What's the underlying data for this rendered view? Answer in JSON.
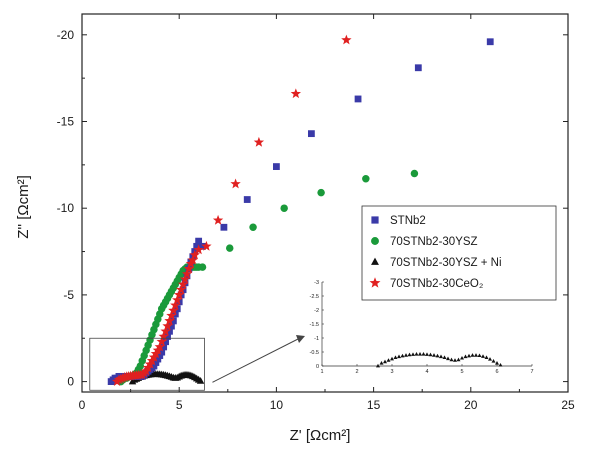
{
  "chart_data": {
    "type": "scatter",
    "xlabel": "Z' [Ωcm²]",
    "ylabel": "Z'' [Ωcm²]",
    "x_axis": {
      "min": 0,
      "max": 25,
      "ticks": [
        0,
        5,
        10,
        15,
        20,
        25
      ]
    },
    "y_axis": {
      "min": 0.6,
      "max": -21.2,
      "inverted": true,
      "ticks": [
        0,
        -5,
        -10,
        -15,
        -20
      ]
    },
    "grid": false,
    "legend_position": "right",
    "legend": [
      {
        "label": "STNb2",
        "marker": "square",
        "color": "#3a3aa8"
      },
      {
        "label": "70STNb2-30YSZ",
        "marker": "circle",
        "color": "#1a9a3a"
      },
      {
        "label": "70STNb2-30YSZ + Ni",
        "marker": "triangle",
        "color": "#111111"
      },
      {
        "label": "70STNb2-30CeO₂",
        "marker": "star",
        "color": "#e02020"
      }
    ],
    "series": [
      {
        "name": "STNb2",
        "marker": "square",
        "color": "#3a3aa8",
        "x": [
          1.5,
          1.6,
          1.7,
          1.8,
          1.9,
          2.0,
          2.1,
          2.2,
          2.3,
          2.4,
          2.5,
          2.6,
          2.7,
          2.8,
          2.9,
          3.0,
          3.1,
          3.2,
          3.3,
          3.4,
          3.5,
          3.6,
          3.7,
          3.8,
          3.9,
          4.0,
          4.1,
          4.2,
          4.3,
          4.4,
          4.5,
          4.6,
          4.7,
          4.8,
          4.9,
          5.0,
          5.1,
          5.2,
          5.3,
          5.4,
          5.5,
          5.6,
          5.7,
          5.8,
          5.9,
          6.0,
          6.2,
          7.3,
          8.5,
          10.0,
          11.8,
          14.2,
          17.3,
          21.0
        ],
        "y": [
          0.0,
          -0.1,
          -0.2,
          -0.2,
          -0.3,
          -0.3,
          -0.3,
          -0.3,
          -0.3,
          -0.3,
          -0.3,
          -0.3,
          -0.3,
          -0.3,
          -0.3,
          -0.3,
          -0.3,
          -0.4,
          -0.5,
          -0.6,
          -0.7,
          -0.8,
          -0.9,
          -1.1,
          -1.3,
          -1.5,
          -1.7,
          -2.0,
          -2.3,
          -2.6,
          -2.9,
          -3.2,
          -3.5,
          -3.9,
          -4.2,
          -4.6,
          -5.0,
          -5.3,
          -5.7,
          -6.1,
          -6.5,
          -6.9,
          -7.2,
          -7.5,
          -7.8,
          -8.1,
          -7.8,
          -8.9,
          -10.5,
          -12.4,
          -14.3,
          -16.3,
          -18.1,
          -19.6
        ]
      },
      {
        "name": "70STNb2-30YSZ",
        "marker": "circle",
        "color": "#1a9a3a",
        "x": [
          2.0,
          2.1,
          2.2,
          2.3,
          2.4,
          2.5,
          2.6,
          2.7,
          2.8,
          2.9,
          3.0,
          3.1,
          3.2,
          3.3,
          3.4,
          3.5,
          3.6,
          3.7,
          3.8,
          3.9,
          4.0,
          4.1,
          4.2,
          4.3,
          4.4,
          4.5,
          4.6,
          4.7,
          4.8,
          4.9,
          5.0,
          5.1,
          5.2,
          5.3,
          5.4,
          5.5,
          5.6,
          5.7,
          5.8,
          5.9,
          6.0,
          6.2,
          7.6,
          8.8,
          10.4,
          12.3,
          14.6,
          17.1
        ],
        "y": [
          0.0,
          -0.1,
          -0.2,
          -0.2,
          -0.3,
          -0.3,
          -0.3,
          -0.4,
          -0.5,
          -0.7,
          -0.9,
          -1.2,
          -1.5,
          -1.8,
          -2.1,
          -2.4,
          -2.7,
          -3.0,
          -3.3,
          -3.6,
          -3.9,
          -4.2,
          -4.4,
          -4.6,
          -4.8,
          -5.0,
          -5.2,
          -5.4,
          -5.6,
          -5.8,
          -6.0,
          -6.2,
          -6.4,
          -6.5,
          -6.6,
          -6.6,
          -6.6,
          -6.6,
          -6.6,
          -6.6,
          -6.6,
          -6.6,
          -7.7,
          -8.9,
          -10.0,
          -10.9,
          -11.7,
          -12.0
        ]
      },
      {
        "name": "70STNb2-30YSZ + Ni",
        "marker": "triangle",
        "color": "#111111",
        "x": [
          2.6,
          2.7,
          2.8,
          2.9,
          3.0,
          3.1,
          3.2,
          3.3,
          3.4,
          3.5,
          3.6,
          3.7,
          3.8,
          3.9,
          4.0,
          4.1,
          4.2,
          4.3,
          4.4,
          4.5,
          4.6,
          4.7,
          4.8,
          4.9,
          5.0,
          5.1,
          5.2,
          5.3,
          5.4,
          5.5,
          5.6,
          5.7,
          5.8,
          5.9,
          6.0,
          6.1
        ],
        "y": [
          0.0,
          -0.1,
          -0.15,
          -0.2,
          -0.25,
          -0.3,
          -0.33,
          -0.36,
          -0.38,
          -0.4,
          -0.41,
          -0.42,
          -0.42,
          -0.42,
          -0.41,
          -0.4,
          -0.38,
          -0.36,
          -0.33,
          -0.3,
          -0.26,
          -0.22,
          -0.2,
          -0.22,
          -0.28,
          -0.33,
          -0.36,
          -0.38,
          -0.38,
          -0.37,
          -0.34,
          -0.3,
          -0.24,
          -0.17,
          -0.1,
          -0.03
        ]
      },
      {
        "name": "70STNb2-30CeO₂",
        "marker": "star",
        "color": "#e02020",
        "x": [
          1.8,
          1.9,
          2.0,
          2.1,
          2.2,
          2.3,
          2.4,
          2.5,
          2.6,
          2.7,
          2.8,
          2.9,
          3.0,
          3.1,
          3.2,
          3.3,
          3.4,
          3.5,
          3.6,
          3.7,
          3.8,
          3.9,
          4.0,
          4.1,
          4.2,
          4.3,
          4.4,
          4.5,
          4.6,
          4.7,
          4.8,
          4.9,
          5.0,
          5.1,
          5.2,
          5.3,
          5.4,
          5.5,
          5.6,
          5.7,
          5.8,
          6.0,
          6.4,
          7.0,
          7.9,
          9.1,
          11.0,
          13.6
        ],
        "y": [
          0.0,
          -0.1,
          -0.15,
          -0.2,
          -0.25,
          -0.28,
          -0.3,
          -0.32,
          -0.34,
          -0.35,
          -0.36,
          -0.37,
          -0.38,
          -0.4,
          -0.5,
          -0.6,
          -0.8,
          -1.0,
          -1.2,
          -1.4,
          -1.6,
          -1.8,
          -2.0,
          -2.3,
          -2.6,
          -2.9,
          -3.2,
          -3.5,
          -3.8,
          -4.1,
          -4.4,
          -4.7,
          -5.0,
          -5.3,
          -5.6,
          -5.9,
          -6.2,
          -6.5,
          -6.8,
          -7.0,
          -7.3,
          -7.6,
          -7.8,
          -9.3,
          -11.4,
          -13.8,
          -16.6,
          -19.7
        ]
      }
    ],
    "inset": {
      "x_ticks": [
        1,
        2,
        3,
        4,
        5,
        6,
        7
      ],
      "y_ticks": [
        0,
        -0.5,
        -1,
        -1.5,
        -2,
        -2.5,
        -3
      ],
      "x_range": [
        1,
        7
      ],
      "y_range": [
        0,
        -3
      ]
    }
  }
}
